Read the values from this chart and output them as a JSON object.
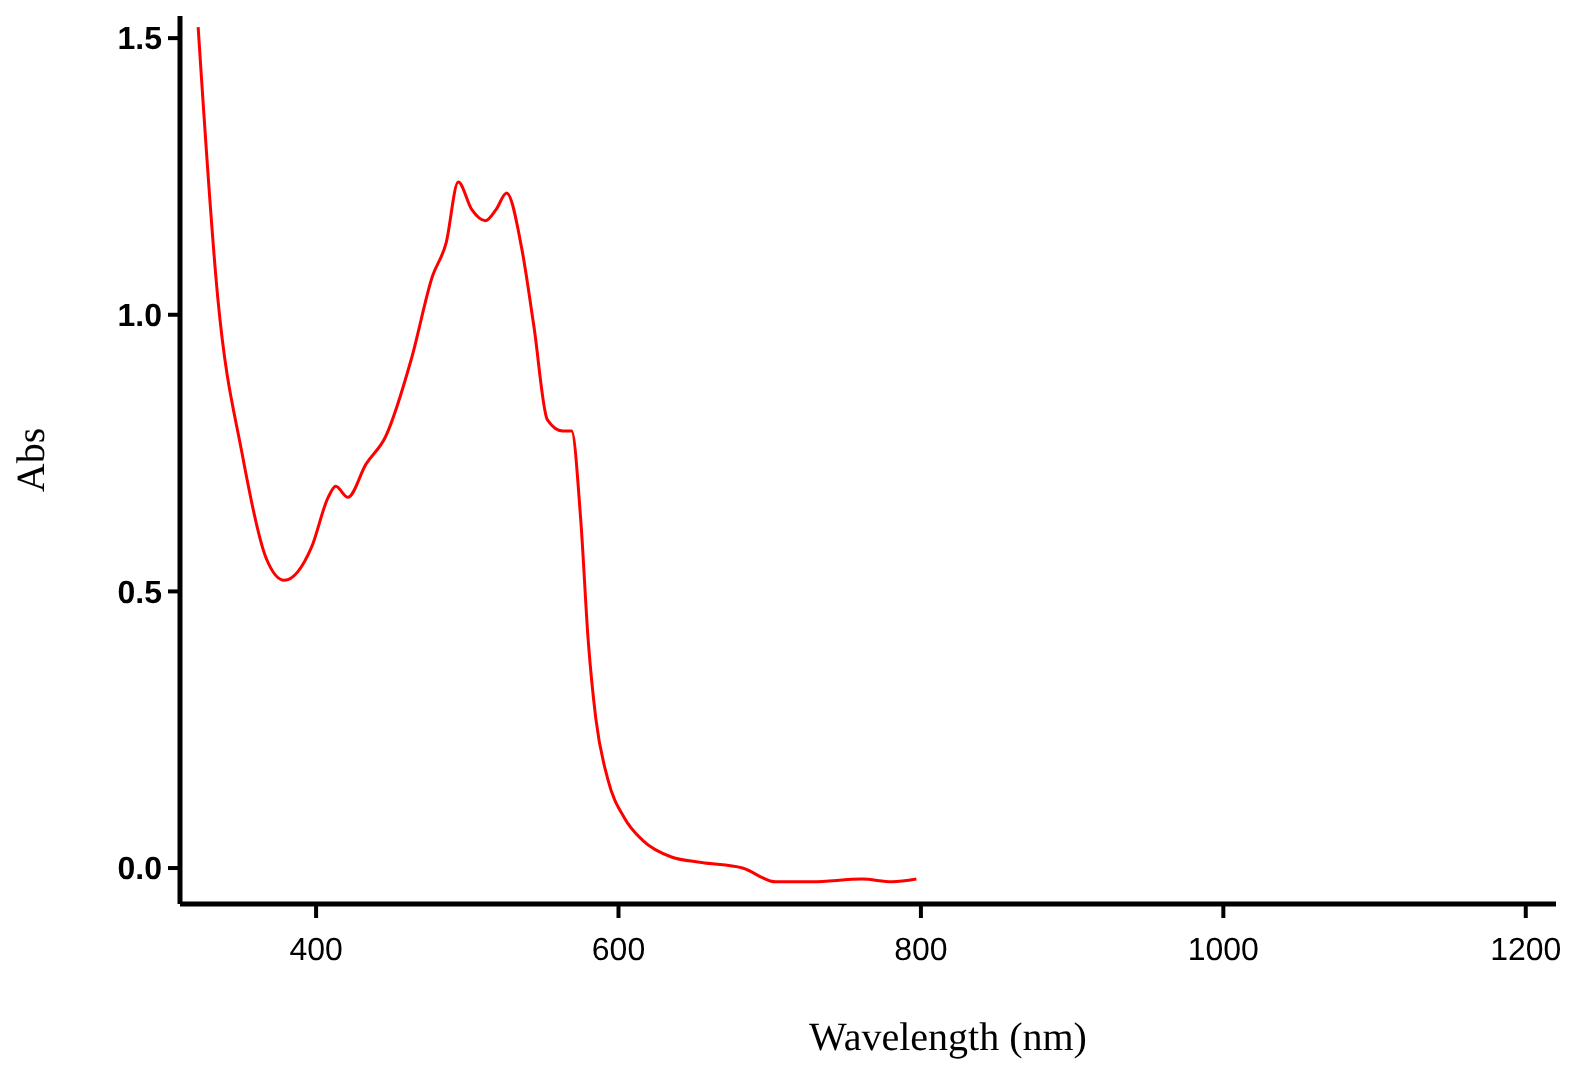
{
  "chart_data": {
    "type": "line",
    "xlabel": "Wavelength (nm)",
    "ylabel": "Abs",
    "xlim": [
      310,
      1220
    ],
    "ylim": [
      -0.065,
      1.54
    ],
    "xticks": [
      400,
      600,
      800,
      1000,
      1200
    ],
    "yticks": [
      {
        "value": 0,
        "label": "0.0"
      },
      {
        "value": 0.5,
        "label": "0.5"
      },
      {
        "value": 1,
        "label": "1.0"
      },
      {
        "value": 1.5,
        "label": "1.5"
      }
    ],
    "grid": false,
    "marker": "none",
    "line_style": "solid",
    "series": [
      {
        "color": "#ff0000",
        "x": [
          322,
          335,
          351,
          367,
          379,
          397,
          408,
          413,
          421,
          433,
          446,
          463,
          477,
          486,
          494,
          503,
          512,
          519,
          526,
          536,
          544,
          553,
          563,
          569,
          575,
          580,
          585,
          593,
          604,
          616,
          635,
          655,
          682,
          704,
          728,
          761,
          781,
          797
        ],
        "values": [
          1.52,
          1.03,
          0.75,
          0.56,
          0.52,
          0.58,
          0.67,
          0.69,
          0.67,
          0.73,
          0.78,
          0.92,
          1.07,
          1.13,
          1.24,
          1.19,
          1.17,
          1.19,
          1.22,
          1.12,
          0.98,
          0.81,
          0.79,
          0.79,
          0.63,
          0.41,
          0.27,
          0.16,
          0.09,
          0.05,
          0.02,
          0.01,
          0.0,
          -0.025,
          -0.025,
          -0.02,
          -0.025,
          -0.02
        ]
      }
    ]
  }
}
